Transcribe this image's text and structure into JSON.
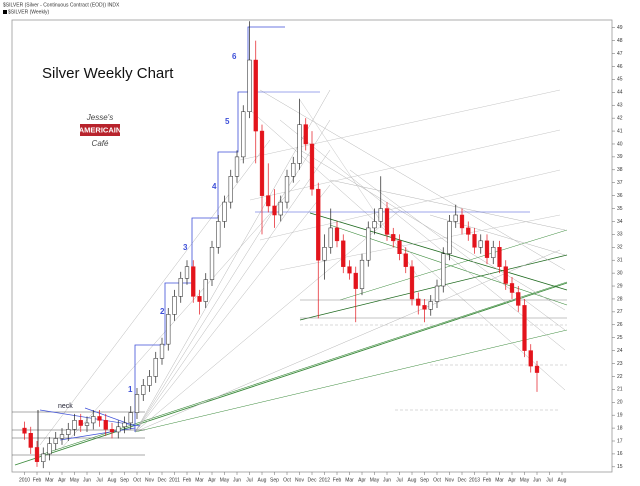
{
  "chart_data": {
    "type": "candlestick",
    "title": "Silver Weekly Chart",
    "header": [
      "$SILVER (Silver - Continuous Contract (EOD)) INDX",
      "$SILVER (Weekly)"
    ],
    "logo": [
      "Jesse's",
      "AMERICAIN",
      "Café"
    ],
    "annotations": [
      "neck",
      "1",
      "2",
      "3",
      "4",
      "5",
      "6"
    ],
    "up_color": "#ffffff",
    "down_color": "#e3141c",
    "ylim": [
      14.6,
      49.6
    ],
    "yticks": [
      15,
      16,
      17,
      18,
      19,
      20,
      21,
      22,
      23,
      24,
      25,
      26,
      27,
      28,
      29,
      30,
      31,
      32,
      33,
      34,
      35,
      36,
      37,
      38,
      39,
      40,
      41,
      42,
      43,
      44,
      45,
      46,
      47,
      48,
      49
    ],
    "xlim": [
      -1,
      47
    ],
    "xticks": [
      {
        "value": 0,
        "label": "2010"
      },
      {
        "value": 1,
        "label": "Feb"
      },
      {
        "value": 2,
        "label": "Mar"
      },
      {
        "value": 3,
        "label": "Apr"
      },
      {
        "value": 4,
        "label": "May"
      },
      {
        "value": 5,
        "label": "Jun"
      },
      {
        "value": 6,
        "label": "Jul"
      },
      {
        "value": 7,
        "label": "Aug"
      },
      {
        "value": 8,
        "label": "Sep"
      },
      {
        "value": 9,
        "label": "Oct"
      },
      {
        "value": 10,
        "label": "Nov"
      },
      {
        "value": 11,
        "label": "Dec"
      },
      {
        "value": 12,
        "label": "2011"
      },
      {
        "value": 13,
        "label": "Feb"
      },
      {
        "value": 14,
        "label": "Mar"
      },
      {
        "value": 15,
        "label": "Apr"
      },
      {
        "value": 16,
        "label": "May"
      },
      {
        "value": 17,
        "label": "Jun"
      },
      {
        "value": 18,
        "label": "Jul"
      },
      {
        "value": 19,
        "label": "Aug"
      },
      {
        "value": 20,
        "label": "Sep"
      },
      {
        "value": 21,
        "label": "Oct"
      },
      {
        "value": 22,
        "label": "Nov"
      },
      {
        "value": 23,
        "label": "Dec"
      },
      {
        "value": 24,
        "label": "2012"
      },
      {
        "value": 25,
        "label": "Feb"
      },
      {
        "value": 26,
        "label": "Mar"
      },
      {
        "value": 27,
        "label": "Apr"
      },
      {
        "value": 28,
        "label": "May"
      },
      {
        "value": 29,
        "label": "Jun"
      },
      {
        "value": 30,
        "label": "Jul"
      },
      {
        "value": 31,
        "label": "Aug"
      },
      {
        "value": 32,
        "label": "Sep"
      },
      {
        "value": 33,
        "label": "Oct"
      },
      {
        "value": 34,
        "label": "Nov"
      },
      {
        "value": 35,
        "label": "Dec"
      },
      {
        "value": 36,
        "label": "2013"
      },
      {
        "value": 37,
        "label": "Feb"
      },
      {
        "value": 38,
        "label": "Mar"
      },
      {
        "value": 39,
        "label": "Apr"
      },
      {
        "value": 40,
        "label": "May"
      },
      {
        "value": 41,
        "label": "Jun"
      },
      {
        "value": 42,
        "label": "Jul"
      },
      {
        "value": 43,
        "label": "Aug"
      }
    ],
    "x": [
      0,
      0.5,
      1,
      1.5,
      2,
      2.5,
      3,
      3.5,
      4,
      4.5,
      5,
      5.5,
      6,
      6.5,
      7,
      7.5,
      8,
      8.5,
      9,
      9.5,
      10,
      10.5,
      11,
      11.5,
      12,
      12.5,
      13,
      13.5,
      14,
      14.5,
      15,
      15.5,
      16,
      16.5,
      17,
      17.5,
      18,
      18.5,
      19,
      19.5,
      20,
      20.5,
      21,
      21.5,
      22,
      22.5,
      23,
      23.5,
      24,
      24.5,
      25,
      25.5,
      26,
      26.5,
      27,
      27.5,
      28,
      28.5,
      29,
      29.5,
      30,
      30.5,
      31,
      31.5,
      32,
      32.5,
      33,
      33.5,
      34,
      34.5,
      35,
      35.5,
      36,
      36.5,
      37,
      37.5,
      38,
      38.5,
      39,
      39.5,
      40,
      40.5,
      41
    ],
    "ohlc": [
      [
        18.0,
        18.5,
        17.1,
        17.6
      ],
      [
        17.6,
        18.1,
        16.0,
        16.5
      ],
      [
        16.5,
        17.0,
        15.0,
        15.4
      ],
      [
        15.4,
        16.5,
        14.9,
        16.0
      ],
      [
        16.0,
        17.3,
        15.5,
        16.8
      ],
      [
        16.8,
        17.7,
        16.3,
        17.2
      ],
      [
        17.2,
        18.0,
        16.7,
        17.5
      ],
      [
        17.5,
        18.4,
        17.0,
        17.9
      ],
      [
        17.9,
        19.1,
        17.4,
        18.6
      ],
      [
        18.6,
        19.1,
        17.7,
        18.2
      ],
      [
        18.2,
        18.9,
        17.7,
        18.4
      ],
      [
        18.4,
        19.4,
        17.9,
        18.9
      ],
      [
        18.9,
        19.4,
        18.1,
        18.6
      ],
      [
        18.6,
        19.1,
        17.4,
        17.9
      ],
      [
        17.9,
        18.4,
        17.2,
        17.7
      ],
      [
        17.7,
        18.6,
        17.2,
        18.1
      ],
      [
        18.1,
        18.9,
        17.6,
        18.4
      ],
      [
        18.4,
        19.7,
        17.9,
        19.2
      ],
      [
        19.2,
        21.1,
        18.7,
        20.6
      ],
      [
        20.6,
        21.8,
        20.1,
        21.3
      ],
      [
        21.3,
        22.5,
        20.8,
        22.0
      ],
      [
        22.0,
        23.9,
        21.5,
        23.4
      ],
      [
        23.4,
        25.0,
        22.9,
        24.5
      ],
      [
        24.5,
        27.3,
        24.0,
        26.8
      ],
      [
        26.8,
        28.7,
        26.3,
        28.2
      ],
      [
        28.2,
        30.1,
        27.7,
        29.6
      ],
      [
        29.6,
        31.0,
        29.1,
        30.5
      ],
      [
        30.5,
        31.0,
        27.7,
        28.2
      ],
      [
        28.2,
        28.7,
        26.8,
        27.8
      ],
      [
        27.8,
        30.0,
        27.3,
        29.5
      ],
      [
        29.5,
        32.5,
        29.0,
        32.0
      ],
      [
        32.0,
        34.5,
        31.5,
        34.0
      ],
      [
        34.0,
        36.0,
        33.5,
        35.5
      ],
      [
        35.5,
        38.0,
        35.0,
        37.5
      ],
      [
        37.5,
        39.5,
        37.0,
        39.0
      ],
      [
        39.0,
        43.0,
        38.5,
        42.5
      ],
      [
        42.5,
        49.5,
        42.0,
        46.5
      ],
      [
        46.5,
        48.0,
        38.5,
        41.0
      ],
      [
        41.0,
        41.5,
        33.0,
        36.0
      ],
      [
        36.0,
        38.5,
        34.7,
        35.2
      ],
      [
        35.2,
        36.5,
        33.5,
        34.5
      ],
      [
        34.5,
        36.0,
        34.0,
        35.5
      ],
      [
        35.5,
        38.0,
        35.0,
        37.5
      ],
      [
        37.5,
        39.0,
        37.0,
        38.5
      ],
      [
        38.5,
        43.5,
        38.0,
        41.5
      ],
      [
        41.5,
        42.0,
        39.5,
        40.0
      ],
      [
        40.0,
        41.0,
        36.0,
        36.5
      ],
      [
        36.5,
        37.0,
        26.5,
        31.0
      ],
      [
        31.0,
        33.0,
        29.5,
        32.0
      ],
      [
        32.0,
        35.0,
        31.5,
        33.5
      ],
      [
        33.5,
        34.0,
        32.0,
        32.5
      ],
      [
        32.5,
        33.0,
        30.0,
        30.5
      ],
      [
        30.5,
        31.0,
        29.5,
        30.0
      ],
      [
        30.0,
        30.5,
        26.2,
        28.8
      ],
      [
        28.8,
        31.5,
        28.3,
        31.0
      ],
      [
        31.0,
        34.0,
        30.5,
        33.5
      ],
      [
        33.5,
        35.0,
        33.0,
        34.0
      ],
      [
        34.0,
        37.5,
        33.5,
        35.0
      ],
      [
        35.0,
        35.5,
        32.5,
        33.0
      ],
      [
        33.0,
        33.5,
        32.0,
        32.5
      ],
      [
        32.5,
        33.0,
        31.0,
        31.5
      ],
      [
        31.5,
        32.0,
        30.0,
        30.5
      ],
      [
        30.5,
        31.0,
        27.5,
        28.0
      ],
      [
        28.0,
        28.5,
        26.8,
        27.5
      ],
      [
        27.5,
        28.0,
        26.2,
        27.2
      ],
      [
        27.2,
        28.3,
        26.7,
        27.8
      ],
      [
        27.8,
        29.5,
        27.3,
        29.0
      ],
      [
        29.0,
        32.0,
        28.5,
        31.5
      ],
      [
        31.5,
        34.5,
        31.0,
        34.0
      ],
      [
        34.0,
        35.3,
        33.5,
        34.5
      ],
      [
        34.5,
        35.0,
        33.0,
        33.5
      ],
      [
        33.5,
        34.0,
        32.5,
        33.0
      ],
      [
        33.0,
        33.5,
        31.5,
        32.0
      ],
      [
        32.0,
        33.0,
        31.5,
        32.5
      ],
      [
        32.5,
        33.0,
        30.7,
        31.2
      ],
      [
        31.2,
        32.5,
        30.7,
        32.0
      ],
      [
        32.0,
        32.5,
        30.0,
        30.5
      ],
      [
        30.5,
        31.0,
        28.7,
        29.2
      ],
      [
        29.2,
        29.7,
        28.0,
        28.5
      ],
      [
        28.5,
        29.0,
        27.0,
        27.5
      ],
      [
        27.5,
        28.0,
        23.5,
        24.0
      ],
      [
        24.0,
        24.5,
        22.3,
        22.8
      ],
      [
        22.8,
        23.2,
        20.8,
        22.3
      ]
    ]
  }
}
